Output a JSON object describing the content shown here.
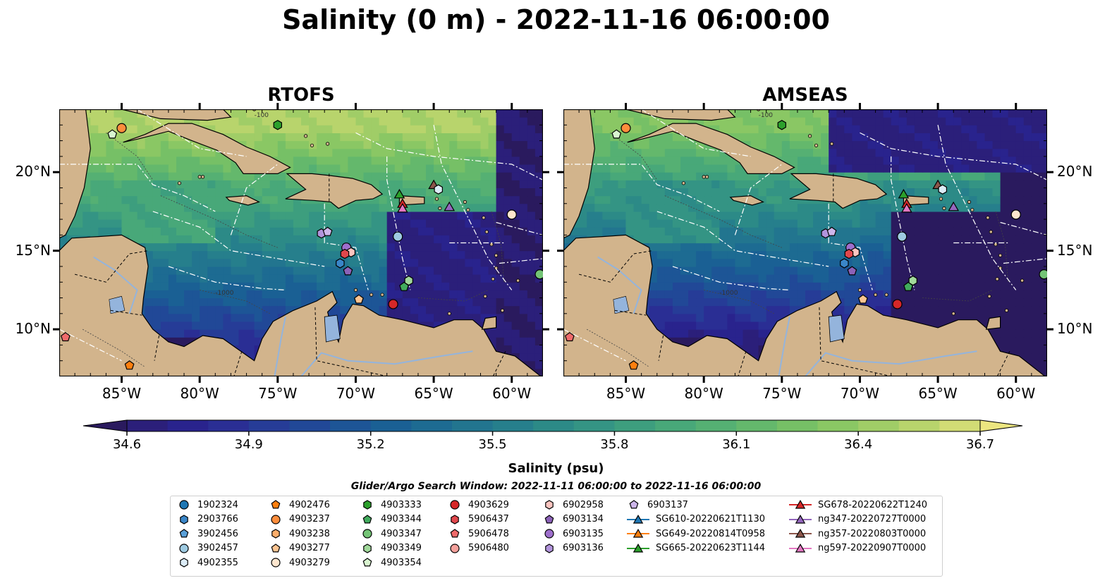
{
  "title": "Salinity (0 m) - 2022-11-16 06:00:00",
  "panels": [
    {
      "title": "RTOFS",
      "variant": "rtofs"
    },
    {
      "title": "AMSEAS",
      "variant": "amseas"
    }
  ],
  "map": {
    "lon_range": [
      -89.0,
      -58.0
    ],
    "lat_range": [
      7.0,
      24.0
    ],
    "lon_ticks": [
      {
        "v": -85,
        "label": "85°W"
      },
      {
        "v": -80,
        "label": "80°W"
      },
      {
        "v": -75,
        "label": "75°W"
      },
      {
        "v": -70,
        "label": "70°W"
      },
      {
        "v": -65,
        "label": "65°W"
      },
      {
        "v": -60,
        "label": "60°W"
      }
    ],
    "lat_ticks": [
      {
        "v": 10,
        "label": "10°N"
      },
      {
        "v": 15,
        "label": "15°N"
      },
      {
        "v": 20,
        "label": "20°N"
      }
    ],
    "land_color": "#d2b48c",
    "water_body_color": "#94b4dc",
    "contour_labels": [
      "-100",
      "-1000"
    ]
  },
  "colorbar": {
    "label": "Salinity (psu)",
    "min": 34.6,
    "max": 36.7,
    "step": 0.1,
    "ticks": [
      {
        "v": 34.6,
        "label": "34.6"
      },
      {
        "v": 34.9,
        "label": "34.9"
      },
      {
        "v": 35.2,
        "label": "35.2"
      },
      {
        "v": 35.5,
        "label": "35.5"
      },
      {
        "v": 35.8,
        "label": "35.8"
      },
      {
        "v": 36.1,
        "label": "36.1"
      },
      {
        "v": 36.4,
        "label": "36.4"
      },
      {
        "v": 36.7,
        "label": "36.7"
      }
    ],
    "extend": "both",
    "colors": [
      "#2a1a5e",
      "#2b1f7a",
      "#29238d",
      "#2a2e94",
      "#263c97",
      "#214897",
      "#1d5596",
      "#1a6094",
      "#1d6b92",
      "#22758f",
      "#267f8c",
      "#2c8a87",
      "#349484",
      "#3d9e7e",
      "#48a879",
      "#55b073",
      "#64b86c",
      "#76c066",
      "#8ac764",
      "#a0cd67",
      "#b8d46c",
      "#d2dc75",
      "#ece680"
    ]
  },
  "search_window": "Glider/Argo Search Window: 2022-11-11 06:00:00 to 2022-11-16 06:00:00",
  "legend": [
    {
      "label": "1902324",
      "marker": "circle",
      "color": "#1f77b4"
    },
    {
      "label": "2903766",
      "marker": "hexagon",
      "color": "#3a86c8"
    },
    {
      "label": "3902456",
      "marker": "pentagon",
      "color": "#5aa0d8"
    },
    {
      "label": "3902457",
      "marker": "circle",
      "color": "#9ecae1"
    },
    {
      "label": "4902355",
      "marker": "hexagon",
      "color": "#dcecf7"
    },
    {
      "label": "4902476",
      "marker": "pentagon",
      "color": "#ff7f0e"
    },
    {
      "label": "4903237",
      "marker": "circle",
      "color": "#fd8d3c"
    },
    {
      "label": "4903238",
      "marker": "hexagon",
      "color": "#fdae6b"
    },
    {
      "label": "4903277",
      "marker": "pentagon",
      "color": "#fdc491"
    },
    {
      "label": "4903279",
      "marker": "circle",
      "color": "#fee6ce"
    },
    {
      "label": "4903333",
      "marker": "hexagon",
      "color": "#2ca02c"
    },
    {
      "label": "4903344",
      "marker": "pentagon",
      "color": "#41ab5d"
    },
    {
      "label": "4903347",
      "marker": "circle",
      "color": "#74c476"
    },
    {
      "label": "4903349",
      "marker": "hexagon",
      "color": "#a1d99b"
    },
    {
      "label": "4903354",
      "marker": "pentagon",
      "color": "#d9f5d0"
    },
    {
      "label": "4903629",
      "marker": "circle",
      "color": "#d62728"
    },
    {
      "label": "5906437",
      "marker": "hexagon",
      "color": "#e0474c"
    },
    {
      "label": "5906478",
      "marker": "pentagon",
      "color": "#ef6b6b"
    },
    {
      "label": "5906480",
      "marker": "circle",
      "color": "#f4a09b"
    },
    {
      "label": "6902958",
      "marker": "hexagon",
      "color": "#fcc5c0"
    },
    {
      "label": "6903134",
      "marker": "pentagon",
      "color": "#8c62b8"
    },
    {
      "label": "6903135",
      "marker": "circle",
      "color": "#9e6fcc"
    },
    {
      "label": "6903136",
      "marker": "hexagon",
      "color": "#b294dc"
    },
    {
      "label": "6903137",
      "marker": "pentagon",
      "color": "#cdb6ea"
    },
    {
      "label": "SG610-20220621T1130",
      "marker": "triangle",
      "color": "#1f77b4"
    },
    {
      "label": "SG649-20220814T0958",
      "marker": "triangle",
      "color": "#ff7f0e"
    },
    {
      "label": "SG665-20220623T1144",
      "marker": "triangle",
      "color": "#2ca02c"
    },
    {
      "label": "SG678-20220622T1240",
      "marker": "triangle",
      "color": "#d62728"
    },
    {
      "label": "ng347-20220727T0000",
      "marker": "triangle",
      "color": "#9467bd"
    },
    {
      "label": "ng357-20220803T0000",
      "marker": "triangle",
      "color": "#8c564b"
    },
    {
      "label": "ng597-20220907T0000",
      "marker": "triangle",
      "color": "#e377c2"
    }
  ],
  "observations": [
    {
      "id": "4903237",
      "lon": -85.0,
      "lat": 22.8
    },
    {
      "id": "4903354",
      "lon": -85.6,
      "lat": 22.4
    },
    {
      "id": "4903333",
      "lon": -75.0,
      "lat": 23.0
    },
    {
      "id": "SG665-20220623T1144",
      "lon": -67.2,
      "lat": 18.6
    },
    {
      "id": "SG678-20220622T1240",
      "lon": -67.0,
      "lat": 18.0
    },
    {
      "id": "ng597-20220907T0000",
      "lon": -67.0,
      "lat": 17.7
    },
    {
      "id": "ng357-20220803T0000",
      "lon": -65.0,
      "lat": 19.2
    },
    {
      "id": "4902355",
      "lon": -64.7,
      "lat": 18.9
    },
    {
      "id": "ng347-20220727T0000",
      "lon": -64.0,
      "lat": 17.8
    },
    {
      "id": "4903279",
      "lon": -60.0,
      "lat": 17.3
    },
    {
      "id": "3902457",
      "lon": -67.3,
      "lat": 15.9
    },
    {
      "id": "6903136",
      "lon": -72.2,
      "lat": 16.1
    },
    {
      "id": "6903137",
      "lon": -71.8,
      "lat": 16.2
    },
    {
      "id": "6903135",
      "lon": -70.6,
      "lat": 15.2
    },
    {
      "id": "6902958",
      "lon": -70.3,
      "lat": 14.9
    },
    {
      "id": "5906437",
      "lon": -70.7,
      "lat": 14.8
    },
    {
      "id": "6903134",
      "lon": -70.5,
      "lat": 13.7
    },
    {
      "id": "2903766",
      "lon": -71.0,
      "lat": 14.2
    },
    {
      "id": "4903349",
      "lon": -66.6,
      "lat": 13.1
    },
    {
      "id": "4903344",
      "lon": -66.9,
      "lat": 12.7
    },
    {
      "id": "4903629",
      "lon": -67.6,
      "lat": 11.6
    },
    {
      "id": "4903277",
      "lon": -69.8,
      "lat": 11.9
    },
    {
      "id": "4903347",
      "lon": -58.2,
      "lat": 13.5
    },
    {
      "id": "5906478",
      "lon": -88.6,
      "lat": 9.5
    },
    {
      "id": "4902476",
      "lon": -84.5,
      "lat": 7.7
    }
  ]
}
